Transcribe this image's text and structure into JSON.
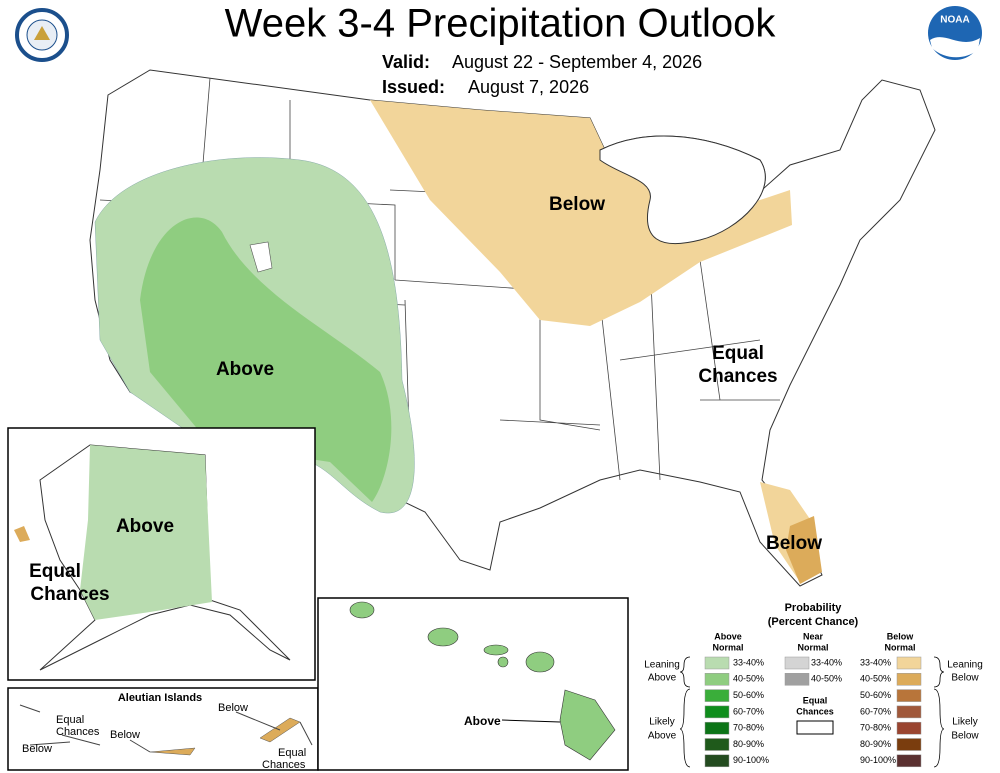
{
  "header": {
    "title": "Week 3-4 Precipitation Outlook",
    "valid_label": "Valid:",
    "valid": "August 22 - September 4, 2026",
    "issued_label": "Issued:",
    "issued": "August 7, 2026"
  },
  "logos": {
    "noaa": "NOAA"
  },
  "map_labels": {
    "below_north": "Below",
    "above_west": "Above",
    "equal_chances": [
      "Equal",
      "Chances"
    ],
    "below_florida": "Below"
  },
  "alaska": {
    "above": "Above",
    "equal_chances": [
      "Equal",
      "Chances"
    ]
  },
  "aleutians": {
    "title": "Aleutian Islands",
    "labels": [
      [
        "Equal",
        "Chances"
      ],
      [
        "Below"
      ],
      [
        "Below"
      ],
      [
        "Below"
      ],
      [
        "Equal",
        "Chances"
      ]
    ]
  },
  "hawaii": {
    "above": "Above"
  },
  "legend": {
    "title": "Probability",
    "subtitle": "(Percent Chance)",
    "above": {
      "header": [
        "Above",
        "Normal"
      ],
      "entries": [
        {
          "label": "33-40%",
          "color": "#b9dcb0"
        },
        {
          "label": "40-50%",
          "color": "#8fcd80"
        },
        {
          "label": "50-60%",
          "color": "#3aae3a"
        },
        {
          "label": "60-70%",
          "color": "#0f8d1c"
        },
        {
          "label": "70-80%",
          "color": "#0c7417"
        },
        {
          "label": "80-90%",
          "color": "#1f5a1b"
        },
        {
          "label": "90-100%",
          "color": "#234b1f"
        }
      ]
    },
    "near": {
      "header": [
        "Near",
        "Normal"
      ],
      "entries": [
        {
          "label": "33-40%",
          "color": "#d4d4d4"
        },
        {
          "label": "40-50%",
          "color": "#a0a0a0"
        }
      ]
    },
    "below": {
      "header": [
        "Below",
        "Normal"
      ],
      "entries": [
        {
          "label": "33-40%",
          "color": "#f2d59a"
        },
        {
          "label": "40-50%",
          "color": "#dcab5a"
        },
        {
          "label": "50-60%",
          "color": "#b8753a"
        },
        {
          "label": "60-70%",
          "color": "#a0583a"
        },
        {
          "label": "70-80%",
          "color": "#9a4530"
        },
        {
          "label": "80-90%",
          "color": "#7a3d0e"
        },
        {
          "label": "90-100%",
          "color": "#5a3030"
        }
      ]
    },
    "equal": [
      "Equal",
      "Chances"
    ],
    "groups": {
      "leaning_above": [
        "Leaning",
        "Above"
      ],
      "likely_above": [
        "Likely",
        "Above"
      ],
      "leaning_below": [
        "Leaning",
        "Below"
      ],
      "likely_below": [
        "Likely",
        "Below"
      ]
    }
  }
}
